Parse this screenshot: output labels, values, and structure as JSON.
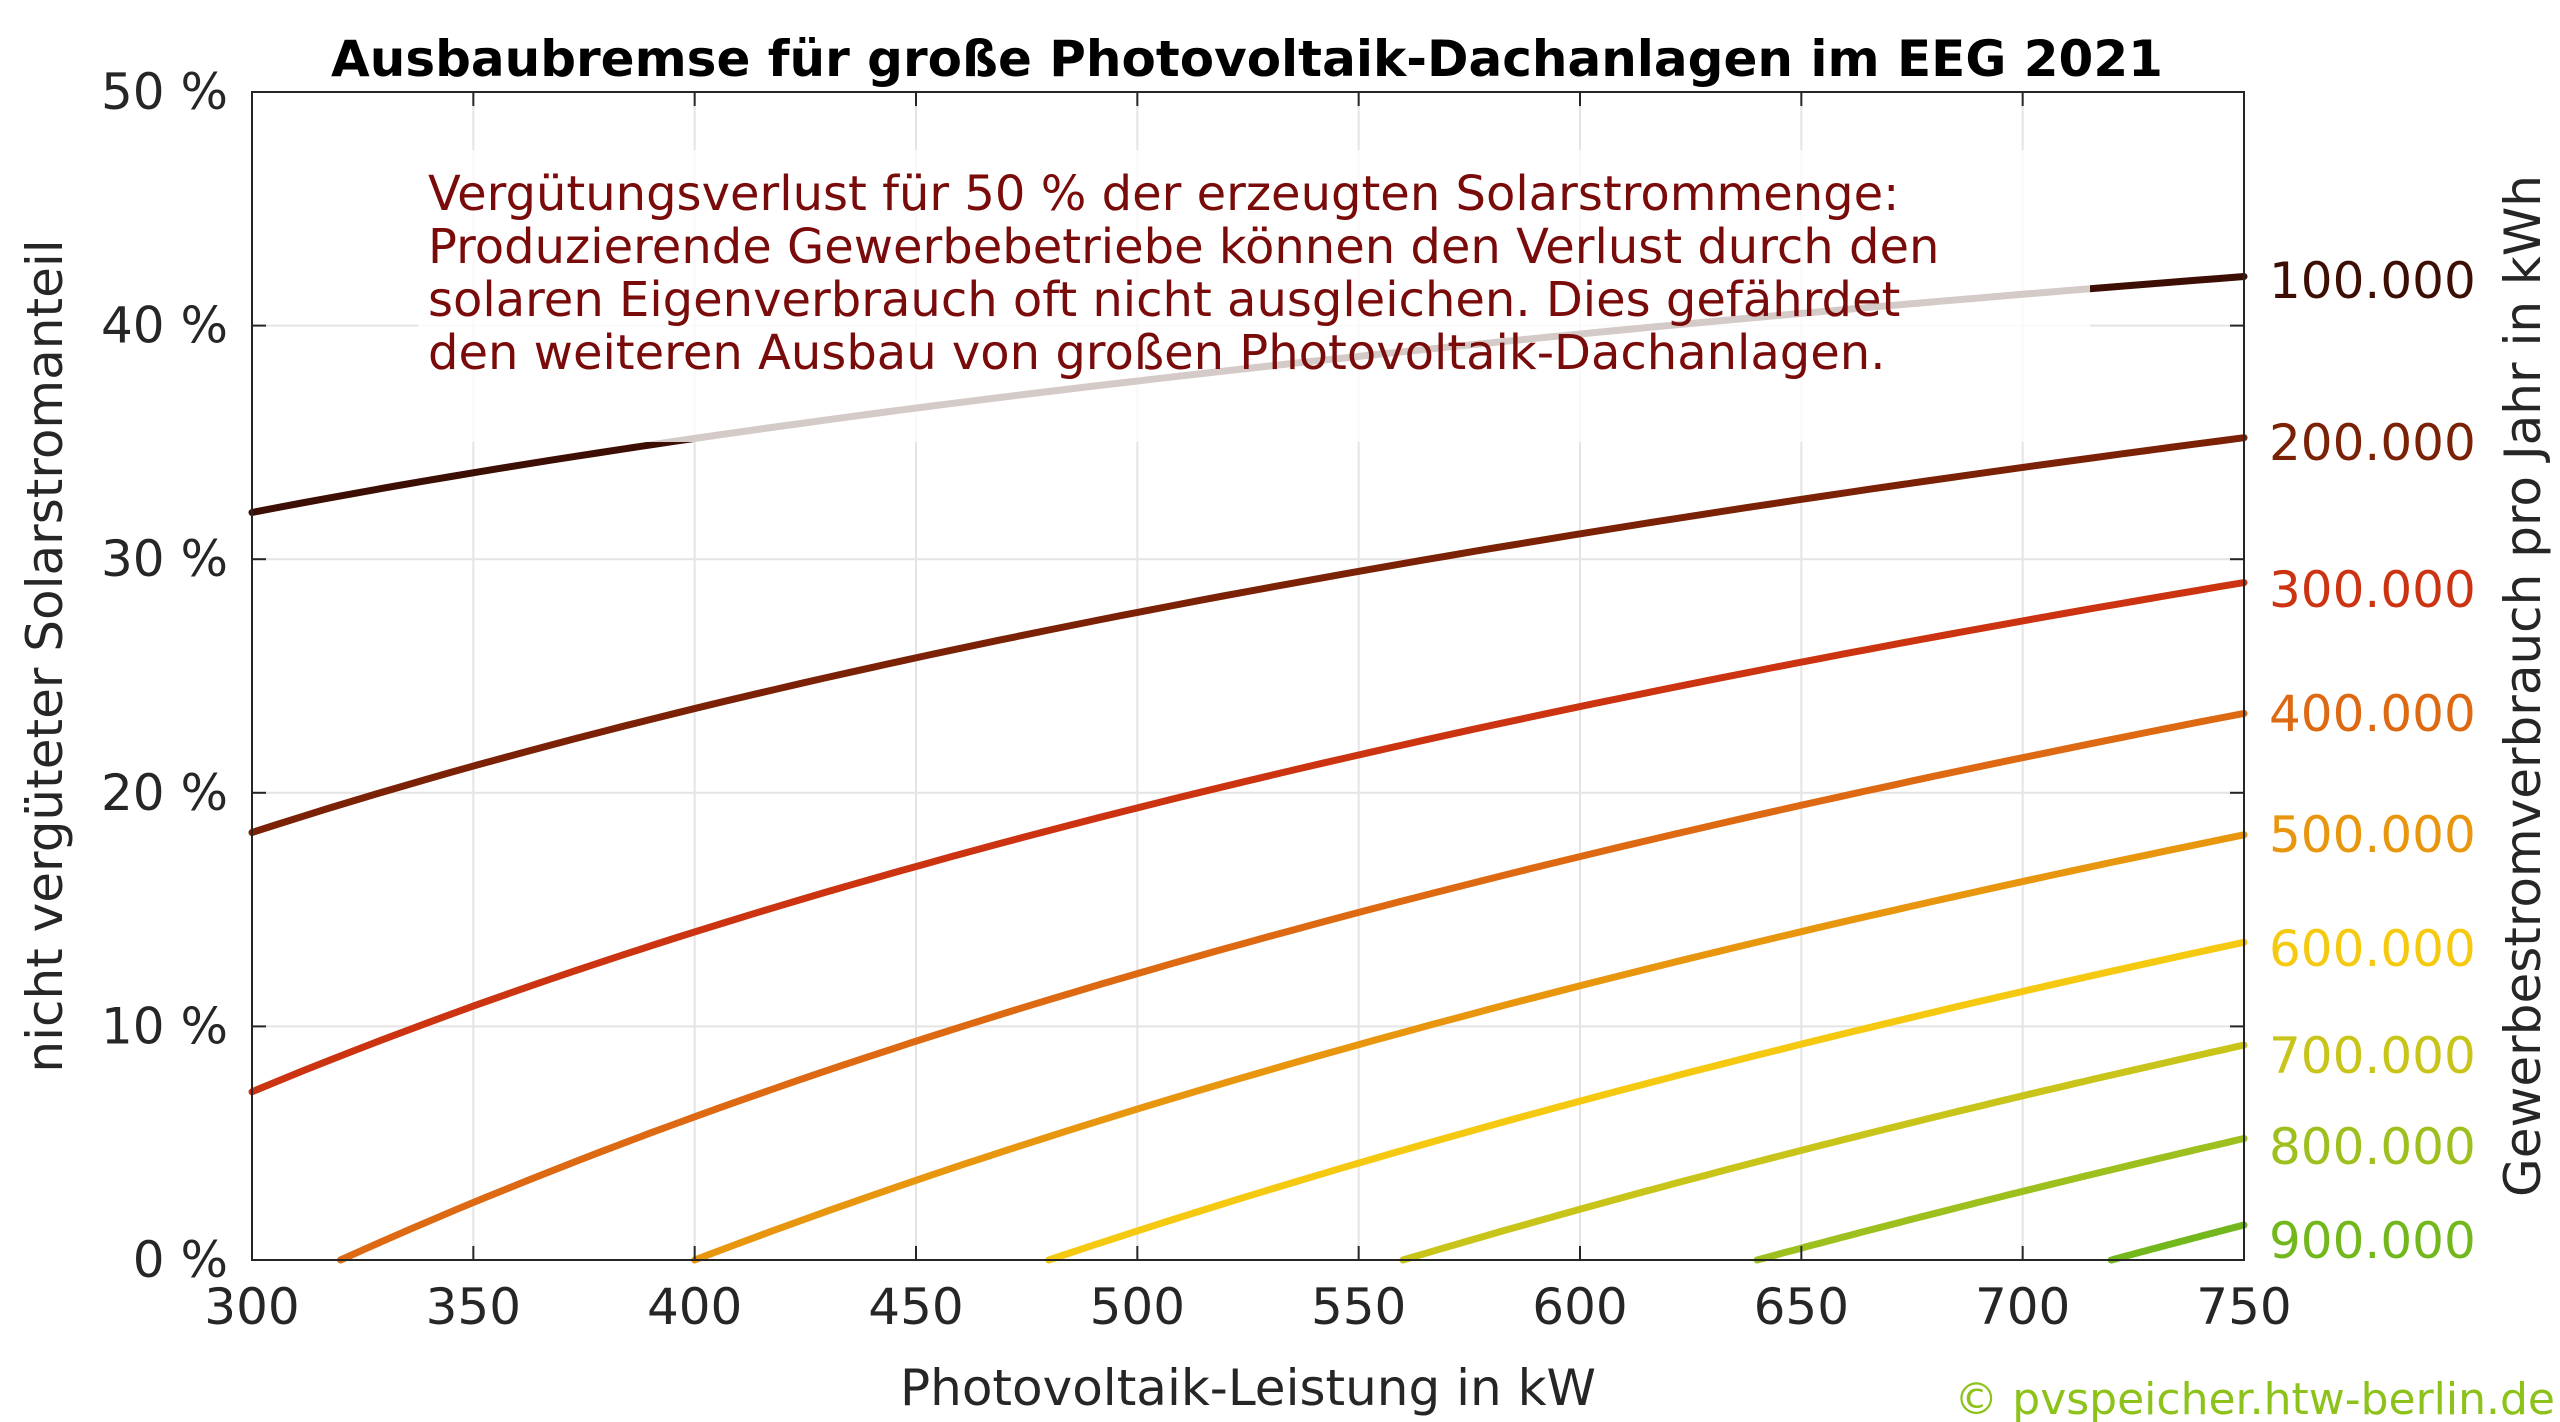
{
  "chart_data": {
    "type": "line",
    "title": "Ausbaubremse für große Photovoltaik-Dachanlagen im EEG 2021",
    "xlabel": "Photovoltaik-Leistung in kW",
    "ylabel": "nicht vergüteter Solarstromanteil",
    "y2label": "Gewerbestromverbrauch pro Jahr in kWh",
    "xlim": [
      300,
      750
    ],
    "ylim": [
      0,
      50
    ],
    "grid": true,
    "x_ticks": [
      {
        "value": 300,
        "label": "300"
      },
      {
        "value": 350,
        "label": "350"
      },
      {
        "value": 400,
        "label": "400"
      },
      {
        "value": 450,
        "label": "450"
      },
      {
        "value": 500,
        "label": "500"
      },
      {
        "value": 550,
        "label": "550"
      },
      {
        "value": 600,
        "label": "600"
      },
      {
        "value": 650,
        "label": "650"
      },
      {
        "value": 700,
        "label": "700"
      },
      {
        "value": 750,
        "label": "750"
      }
    ],
    "y_ticks": [
      {
        "value": 0,
        "label": "0 %"
      },
      {
        "value": 10,
        "label": "10 %"
      },
      {
        "value": 20,
        "label": "20 %"
      },
      {
        "value": 30,
        "label": "30 %"
      },
      {
        "value": 40,
        "label": "40 %"
      },
      {
        "value": 50,
        "label": "50 %"
      }
    ],
    "annotation": {
      "lines": [
        "Vergütungsverlust für 50 % der erzeugten Solarstrommenge:",
        "Produzierende Gewerbebetriebe können den Verlust durch den",
        "solaren Eigenverbrauch oft nicht ausgleichen. Dies gefährdet",
        "den weiteren Ausbau von großen Photovoltaik-Dachanlagen."
      ],
      "color": "#7a0b0b"
    },
    "series": [
      {
        "name": "100.000",
        "color": "#3d0e04",
        "x0": 300,
        "x": [
          300,
          750
        ],
        "y": [
          32.0,
          42.1
        ]
      },
      {
        "name": "200.000",
        "color": "#7a2106",
        "x0": 300,
        "x": [
          300,
          750
        ],
        "y": [
          18.3,
          35.2
        ]
      },
      {
        "name": "300.000",
        "color": "#cc3311",
        "x0": 300,
        "x": [
          300,
          750
        ],
        "y": [
          7.2,
          29.0
        ]
      },
      {
        "name": "400.000",
        "color": "#dd6a12",
        "x0": 320,
        "x": [
          320,
          750
        ],
        "y": [
          0,
          23.4
        ]
      },
      {
        "name": "500.000",
        "color": "#e8960e",
        "x0": 400,
        "x": [
          400,
          750
        ],
        "y": [
          0,
          18.2
        ]
      },
      {
        "name": "600.000",
        "color": "#f5c90f",
        "x0": 480,
        "x": [
          480,
          750
        ],
        "y": [
          0,
          13.6
        ]
      },
      {
        "name": "700.000",
        "color": "#c8c41a",
        "x0": 560,
        "x": [
          560,
          750
        ],
        "y": [
          0,
          9.2
        ]
      },
      {
        "name": "800.000",
        "color": "#9dc01e",
        "x0": 640,
        "x": [
          640,
          750
        ],
        "y": [
          0,
          5.2
        ]
      },
      {
        "name": "900.000",
        "color": "#72b81c",
        "x0": 720,
        "x": [
          720,
          750
        ],
        "y": [
          0,
          1.5
        ]
      }
    ],
    "credit": {
      "text": "© pvspeicher.htw-berlin.de",
      "color": "#8cc21a"
    }
  }
}
